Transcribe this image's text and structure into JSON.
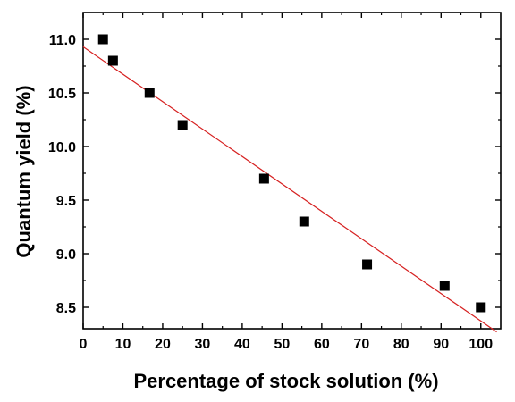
{
  "chart_data": {
    "type": "scatter",
    "title": "",
    "xlabel": "Percentage of stock solution (%)",
    "ylabel": "Quantum yield (%)",
    "xlim": [
      0,
      105
    ],
    "ylim": [
      8.3,
      11.25
    ],
    "x_ticks": [
      0,
      10,
      20,
      30,
      40,
      50,
      60,
      70,
      80,
      90,
      100
    ],
    "y_ticks": [
      8.5,
      9.0,
      9.5,
      10.0,
      10.5,
      11.0
    ],
    "x_tick_labels": [
      "0",
      "10",
      "20",
      "30",
      "40",
      "50",
      "60",
      "70",
      "80",
      "90",
      "100"
    ],
    "y_tick_labels": [
      "8.5",
      "9.0",
      "9.5",
      "10.0",
      "10.5",
      "11.0"
    ],
    "series": [
      {
        "marker": "square",
        "color": "#000000",
        "points": [
          {
            "x": 5,
            "y": 11.0
          },
          {
            "x": 7.5,
            "y": 10.8
          },
          {
            "x": 16.7,
            "y": 10.5
          },
          {
            "x": 25,
            "y": 10.2
          },
          {
            "x": 45.5,
            "y": 9.7
          },
          {
            "x": 55.6,
            "y": 9.3
          },
          {
            "x": 71.4,
            "y": 8.9
          },
          {
            "x": 90.9,
            "y": 8.7
          },
          {
            "x": 100,
            "y": 8.5
          }
        ]
      }
    ],
    "fit_line": {
      "color": "#d62020",
      "x": [
        0,
        104
      ],
      "y": [
        10.93,
        8.27
      ]
    },
    "grid": false,
    "legend": "none"
  }
}
